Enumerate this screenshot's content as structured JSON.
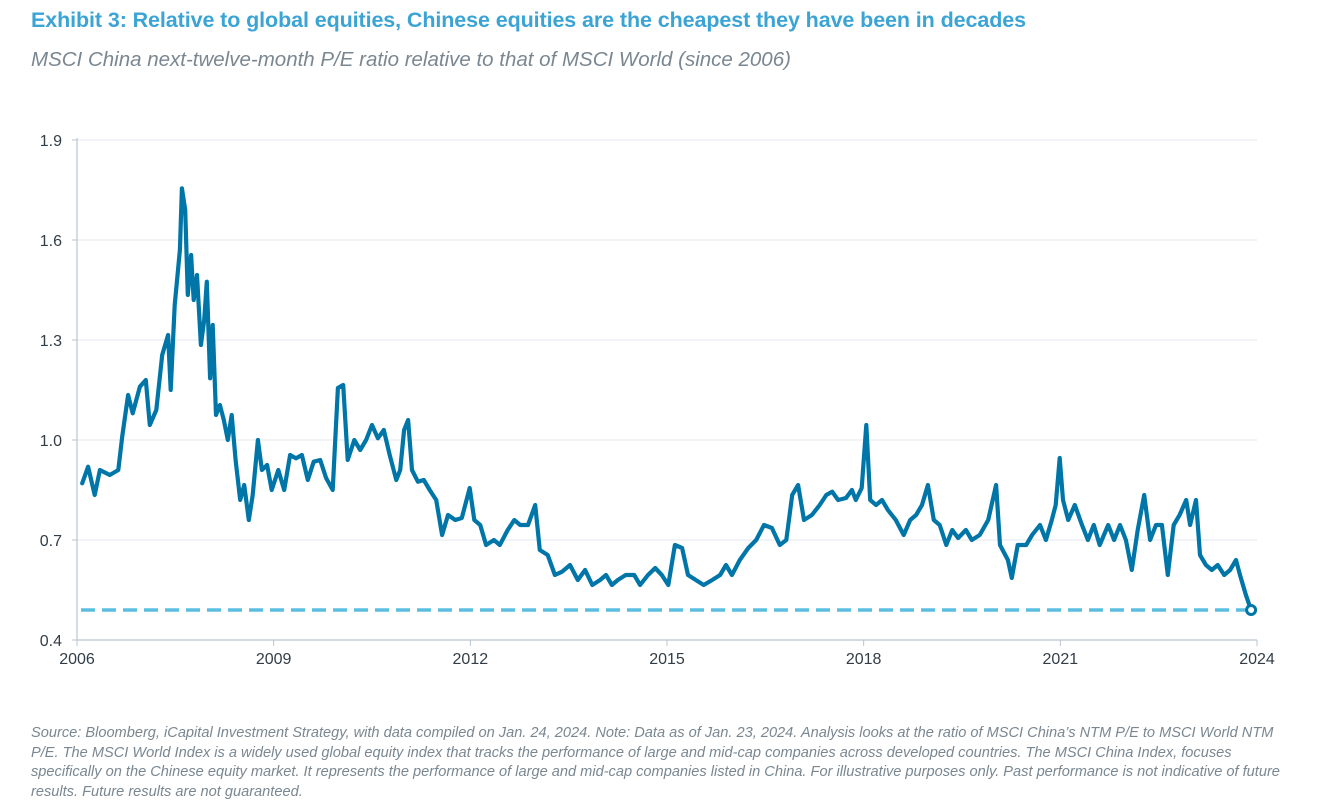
{
  "title": "Exhibit 3: Relative to global equities, Chinese equities are the cheapest they have been in decades",
  "subtitle": "MSCI China next-twelve-month P/E ratio relative to that of MSCI World (since 2006)",
  "footer": "Source: Bloomberg, iCapital Investment Strategy, with data compiled on Jan. 24, 2024. Note: Data as of Jan. 23, 2024. Analysis looks at the ratio of MSCI China’s NTM P/E to MSCI World NTM P/E. The MSCI World Index is a widely used global equity index that tracks the performance of large and mid-cap companies across developed countries. The MSCI China Index, focuses specifically on the Chinese equity market. It represents the performance of large and mid-cap companies listed in China. For illustrative purposes only. Past performance is not indicative of future results. Future results are not guaranteed.",
  "colors": {
    "title": "#3BA4D5",
    "line": "#0076A8",
    "reference_line": "#5BBDE0",
    "grid": "#E3E7EE",
    "axis": "#B9C4D0"
  },
  "chart_data": {
    "type": "line",
    "xlim": [
      2006,
      2024
    ],
    "ylim": [
      0.4,
      1.9
    ],
    "x_ticks": [
      "2006",
      "2009",
      "2012",
      "2015",
      "2018",
      "2021",
      "2024"
    ],
    "y_ticks": [
      "0.4",
      "0.7",
      "1.0",
      "1.3",
      "1.6",
      "1.9"
    ],
    "grid": "horizontal",
    "reference_line": {
      "value": 0.49,
      "style": "dashed"
    },
    "series": [
      {
        "x": [
          2006.08,
          2006.17,
          2006.27,
          2006.35,
          2006.5,
          2006.63,
          2006.69,
          2006.78,
          2006.85,
          2006.96,
          2007.05,
          2007.11,
          2007.21,
          2007.3,
          2007.39,
          2007.43,
          2007.49,
          2007.57,
          2007.6,
          2007.65,
          2007.69,
          2007.74,
          2007.78,
          2007.83,
          2007.89,
          2007.94,
          2007.98,
          2008.03,
          2008.07,
          2008.12,
          2008.18,
          2008.24,
          2008.3,
          2008.36,
          2008.42,
          2008.49,
          2008.55,
          2008.62,
          2008.68,
          2008.76,
          2008.82,
          2008.9,
          2008.97,
          2009.07,
          2009.16,
          2009.25,
          2009.34,
          2009.43,
          2009.52,
          2009.61,
          2009.71,
          2009.8,
          2009.9,
          2009.98,
          2010.06,
          2010.13,
          2010.23,
          2010.32,
          2010.41,
          2010.5,
          2010.59,
          2010.68,
          2010.77,
          2010.87,
          2010.93,
          2010.99,
          2011.05,
          2011.11,
          2011.2,
          2011.29,
          2011.38,
          2011.48,
          2011.57,
          2011.66,
          2011.77,
          2011.87,
          2011.99,
          2012.06,
          2012.15,
          2012.24,
          2012.36,
          2012.45,
          2012.57,
          2012.67,
          2012.76,
          2012.88,
          2012.99,
          2013.06,
          2013.18,
          2013.29,
          2013.4,
          2013.52,
          2013.64,
          2013.75,
          2013.86,
          2013.98,
          2014.07,
          2014.16,
          2014.25,
          2014.37,
          2014.5,
          2014.59,
          2014.71,
          2014.82,
          2014.92,
          2015.02,
          2015.12,
          2015.23,
          2015.32,
          2015.44,
          2015.56,
          2015.69,
          2015.81,
          2015.9,
          2015.99,
          2016.11,
          2016.24,
          2016.36,
          2016.48,
          2016.6,
          2016.72,
          2016.82,
          2016.91,
          2017.0,
          2017.09,
          2017.21,
          2017.33,
          2017.43,
          2017.52,
          2017.61,
          2017.73,
          2017.82,
          2017.88,
          2017.97,
          2018.04,
          2018.1,
          2018.19,
          2018.28,
          2018.37,
          2018.49,
          2018.61,
          2018.71,
          2018.8,
          2018.89,
          2018.98,
          2019.07,
          2019.16,
          2019.26,
          2019.35,
          2019.44,
          2019.56,
          2019.65,
          2019.77,
          2019.9,
          2020.02,
          2020.08,
          2020.2,
          2020.26,
          2020.35,
          2020.48,
          2020.57,
          2020.69,
          2020.78,
          2020.87,
          2020.93,
          2020.99,
          2021.04,
          2021.12,
          2021.22,
          2021.33,
          2021.42,
          2021.51,
          2021.6,
          2021.73,
          2021.82,
          2021.91,
          2022.0,
          2022.09,
          2022.18,
          2022.28,
          2022.37,
          2022.46,
          2022.55,
          2022.64,
          2022.73,
          2022.82,
          2022.92,
          2022.98,
          2023.07,
          2023.13,
          2023.22,
          2023.31,
          2023.4,
          2023.5,
          2023.59,
          2023.68,
          2023.74,
          2023.83,
          2023.91
        ],
        "y": [
          0.87,
          0.92,
          0.835,
          0.91,
          0.895,
          0.91,
          1.01,
          1.135,
          1.08,
          1.16,
          1.18,
          1.045,
          1.09,
          1.255,
          1.315,
          1.15,
          1.405,
          1.57,
          1.755,
          1.69,
          1.435,
          1.555,
          1.42,
          1.495,
          1.285,
          1.36,
          1.475,
          1.185,
          1.345,
          1.075,
          1.105,
          1.06,
          1.0,
          1.075,
          0.94,
          0.82,
          0.865,
          0.76,
          0.835,
          1.0,
          0.91,
          0.925,
          0.85,
          0.91,
          0.85,
          0.955,
          0.945,
          0.955,
          0.88,
          0.935,
          0.94,
          0.886,
          0.85,
          1.156,
          1.165,
          0.94,
          1.0,
          0.97,
          1.0,
          1.045,
          1.005,
          1.03,
          0.955,
          0.88,
          0.91,
          1.03,
          1.06,
          0.91,
          0.875,
          0.88,
          0.85,
          0.82,
          0.715,
          0.775,
          0.76,
          0.766,
          0.856,
          0.76,
          0.745,
          0.685,
          0.7,
          0.685,
          0.73,
          0.76,
          0.745,
          0.745,
          0.805,
          0.67,
          0.655,
          0.595,
          0.605,
          0.625,
          0.58,
          0.61,
          0.565,
          0.58,
          0.595,
          0.565,
          0.58,
          0.595,
          0.595,
          0.565,
          0.595,
          0.616,
          0.595,
          0.565,
          0.685,
          0.676,
          0.595,
          0.58,
          0.565,
          0.58,
          0.595,
          0.625,
          0.595,
          0.64,
          0.676,
          0.7,
          0.745,
          0.736,
          0.685,
          0.7,
          0.835,
          0.865,
          0.76,
          0.775,
          0.805,
          0.835,
          0.845,
          0.82,
          0.826,
          0.85,
          0.82,
          0.856,
          1.045,
          0.82,
          0.805,
          0.82,
          0.79,
          0.76,
          0.715,
          0.76,
          0.775,
          0.805,
          0.865,
          0.76,
          0.745,
          0.685,
          0.73,
          0.706,
          0.73,
          0.7,
          0.715,
          0.76,
          0.865,
          0.685,
          0.64,
          0.586,
          0.685,
          0.685,
          0.715,
          0.745,
          0.7,
          0.76,
          0.805,
          0.946,
          0.82,
          0.76,
          0.805,
          0.745,
          0.7,
          0.745,
          0.685,
          0.745,
          0.7,
          0.745,
          0.7,
          0.61,
          0.73,
          0.835,
          0.7,
          0.745,
          0.745,
          0.595,
          0.745,
          0.775,
          0.82,
          0.745,
          0.82,
          0.655,
          0.625,
          0.61,
          0.625,
          0.595,
          0.61,
          0.64,
          0.595,
          0.535,
          0.49
        ]
      }
    ]
  }
}
